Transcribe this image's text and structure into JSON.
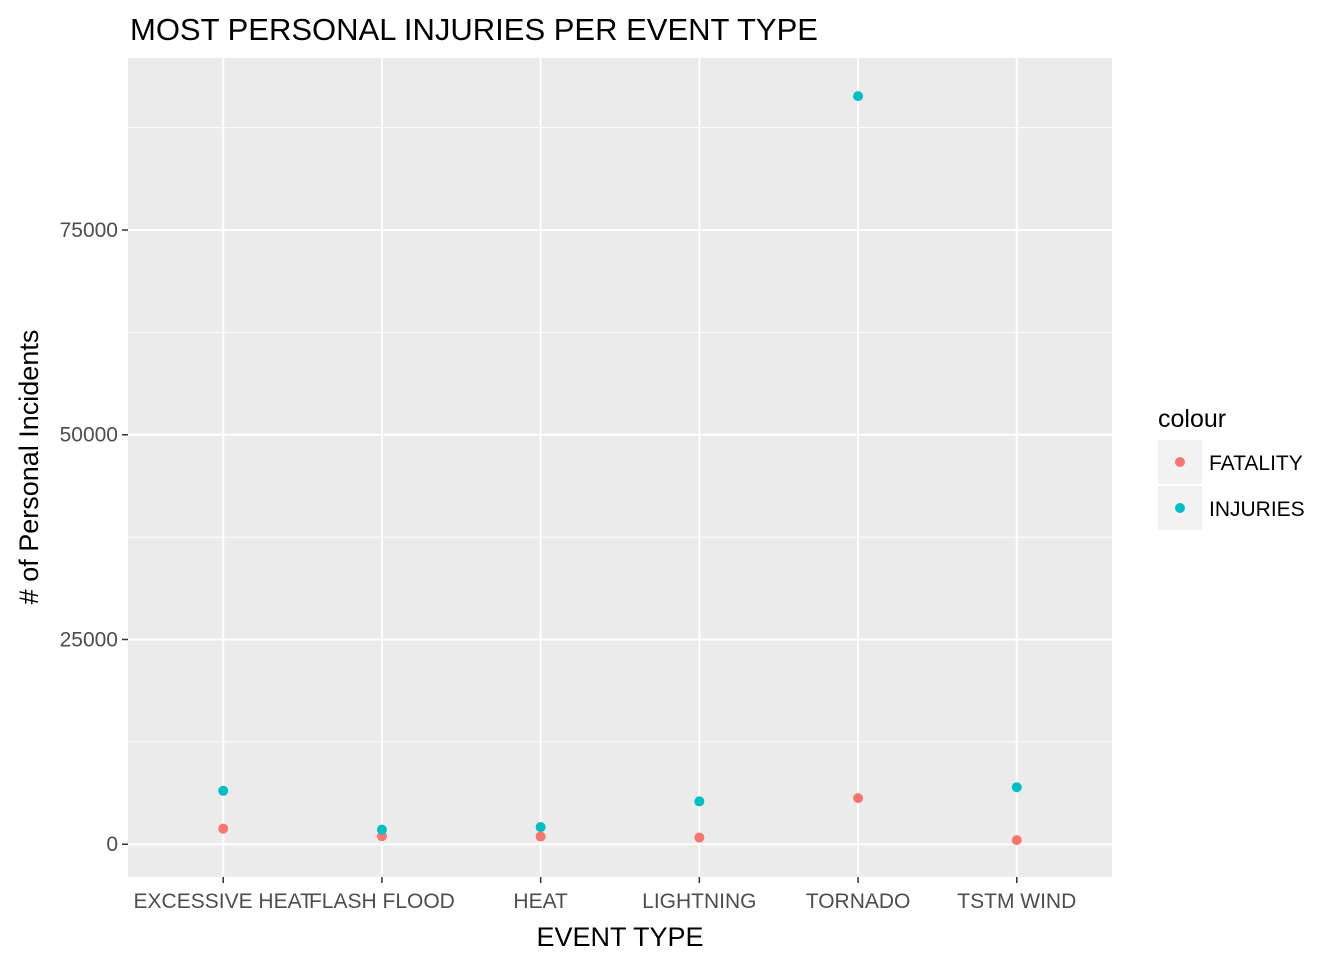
{
  "chart_data": {
    "type": "scatter",
    "title": "MOST PERSONAL INJURIES PER EVENT TYPE",
    "xlabel": "EVENT TYPE",
    "ylabel": "# of Personal Incidents",
    "categories": [
      "EXCESSIVE HEAT",
      "FLASH FLOOD",
      "HEAT",
      "LIGHTNING",
      "TORNADO",
      "TSTM WIND"
    ],
    "ylim": [
      -4000,
      96000
    ],
    "yticks": [
      0,
      25000,
      50000,
      75000
    ],
    "ytick_labels": [
      "0",
      "25000",
      "50000",
      "75000"
    ],
    "grid": true,
    "legend": {
      "title": "colour",
      "position": "right"
    },
    "series": [
      {
        "name": "FATALITY",
        "color": "#F8766D",
        "values": [
          1903,
          978,
          937,
          816,
          5633,
          504
        ]
      },
      {
        "name": "INJURIES",
        "color": "#00BFC4",
        "values": [
          6525,
          1777,
          2100,
          5230,
          91346,
          6957
        ]
      }
    ]
  }
}
